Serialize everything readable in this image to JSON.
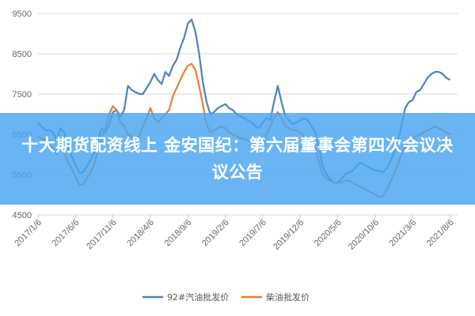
{
  "banner": {
    "title": "十大期货配资线上 金安国纪：第六届董事会第四次会议决议公告"
  },
  "chart_data": {
    "type": "line",
    "title": "",
    "xlabel": "",
    "ylabel": "",
    "ylim": [
      4500,
      9500
    ],
    "y_ticks": [
      "9500",
      "8500",
      "7500",
      "6500",
      "5500",
      "4500"
    ],
    "y_tick_values": [
      9500,
      8500,
      7500,
      6500,
      5500,
      4500
    ],
    "x_tick_labels": [
      "2017/1/6",
      "2017/6/6",
      "2017/11/6",
      "2018/4/6",
      "2018/9/6",
      "2019/2/6",
      "2019/7/6",
      "2019/12/6",
      "2020/5/6",
      "2020/10/6",
      "2021/3/6",
      "2021/8/6"
    ],
    "x_tick_index": [
      0,
      5,
      10,
      15,
      20,
      25,
      30,
      35,
      40,
      45,
      50,
      55
    ],
    "x_index_range": [
      0,
      56
    ],
    "grid": "horizontal",
    "legend_position": "bottom",
    "series": [
      {
        "name": "92#汽油批发价",
        "color": "#4f81bd",
        "points": [
          [
            0,
            6800
          ],
          [
            0.5,
            6680
          ],
          [
            1,
            6600
          ],
          [
            1.5,
            6600
          ],
          [
            2,
            6550
          ],
          [
            2.5,
            6350
          ],
          [
            3,
            6650
          ],
          [
            3.5,
            6550
          ],
          [
            4,
            6200
          ],
          [
            4.5,
            5950
          ],
          [
            5,
            5750
          ],
          [
            5.5,
            5550
          ],
          [
            6,
            5550
          ],
          [
            6.5,
            5700
          ],
          [
            7,
            5850
          ],
          [
            7.5,
            6050
          ],
          [
            8,
            6350
          ],
          [
            8.5,
            6650
          ],
          [
            9,
            6550
          ],
          [
            9.5,
            6750
          ],
          [
            10,
            7050
          ],
          [
            10.5,
            7100
          ],
          [
            11,
            6950
          ],
          [
            11.5,
            7100
          ],
          [
            12,
            7700
          ],
          [
            12.5,
            7600
          ],
          [
            13,
            7550
          ],
          [
            13.5,
            7500
          ],
          [
            14,
            7500
          ],
          [
            14.5,
            7650
          ],
          [
            15,
            7800
          ],
          [
            15.5,
            8000
          ],
          [
            16,
            7850
          ],
          [
            16.5,
            7750
          ],
          [
            17,
            8050
          ],
          [
            17.5,
            7950
          ],
          [
            18,
            8200
          ],
          [
            18.5,
            8350
          ],
          [
            19,
            8650
          ],
          [
            19.5,
            8900
          ],
          [
            20,
            9250
          ],
          [
            20.5,
            9350
          ],
          [
            21,
            9050
          ],
          [
            21.5,
            8500
          ],
          [
            22,
            7800
          ],
          [
            22.5,
            7300
          ],
          [
            23,
            7000
          ],
          [
            23.5,
            7050
          ],
          [
            24,
            7150
          ],
          [
            24.5,
            7200
          ],
          [
            25,
            7250
          ],
          [
            25.5,
            7150
          ],
          [
            26,
            7100
          ],
          [
            26.5,
            7000
          ],
          [
            27,
            6950
          ],
          [
            27.5,
            6900
          ],
          [
            28,
            6850
          ],
          [
            28.5,
            6800
          ],
          [
            29,
            6700
          ],
          [
            29.5,
            6650
          ],
          [
            30,
            6800
          ],
          [
            30.5,
            6900
          ],
          [
            31,
            6850
          ],
          [
            31.5,
            7300
          ],
          [
            32,
            7700
          ],
          [
            32.5,
            7300
          ],
          [
            33,
            6950
          ],
          [
            33.5,
            6850
          ],
          [
            34,
            6750
          ],
          [
            34.5,
            6800
          ],
          [
            35,
            6850
          ],
          [
            35.5,
            6900
          ],
          [
            36,
            6850
          ],
          [
            36.5,
            6700
          ],
          [
            37,
            6550
          ],
          [
            37.5,
            6150
          ],
          [
            38,
            5700
          ],
          [
            38.5,
            5500
          ],
          [
            39,
            5400
          ],
          [
            39.5,
            5300
          ],
          [
            40,
            5300
          ],
          [
            40.5,
            5400
          ],
          [
            41,
            5500
          ],
          [
            41.5,
            5550
          ],
          [
            42,
            5600
          ],
          [
            42.5,
            5700
          ],
          [
            43,
            5800
          ],
          [
            43.5,
            5750
          ],
          [
            44,
            5700
          ],
          [
            44.5,
            5650
          ],
          [
            45,
            5600
          ],
          [
            45.5,
            5600
          ],
          [
            46,
            5550
          ],
          [
            46.5,
            5650
          ],
          [
            47,
            5800
          ],
          [
            47.5,
            6050
          ],
          [
            48,
            6300
          ],
          [
            48.5,
            6700
          ],
          [
            49,
            7150
          ],
          [
            49.5,
            7300
          ],
          [
            50,
            7350
          ],
          [
            50.5,
            7550
          ],
          [
            51,
            7600
          ],
          [
            51.5,
            7750
          ],
          [
            52,
            7900
          ],
          [
            52.5,
            8000
          ],
          [
            53,
            8050
          ],
          [
            53.5,
            8050
          ],
          [
            54,
            8000
          ],
          [
            54.5,
            7900
          ],
          [
            55,
            7850
          ]
        ]
      },
      {
        "name": "柴油批发价",
        "color": "#ed7d31",
        "points": [
          [
            0,
            6450
          ],
          [
            0.5,
            6400
          ],
          [
            1,
            6350
          ],
          [
            1.5,
            6250
          ],
          [
            2,
            6150
          ],
          [
            2.5,
            6000
          ],
          [
            3,
            6200
          ],
          [
            3.5,
            6050
          ],
          [
            4,
            5800
          ],
          [
            4.5,
            5650
          ],
          [
            5,
            5450
          ],
          [
            5.5,
            5250
          ],
          [
            6,
            5250
          ],
          [
            6.5,
            5400
          ],
          [
            7,
            5550
          ],
          [
            7.5,
            5750
          ],
          [
            8,
            6100
          ],
          [
            8.5,
            6400
          ],
          [
            9,
            6650
          ],
          [
            9.5,
            7000
          ],
          [
            10,
            7200
          ],
          [
            10.5,
            7100
          ],
          [
            11,
            6800
          ],
          [
            11.5,
            6700
          ],
          [
            12,
            6500
          ],
          [
            12.5,
            6450
          ],
          [
            13,
            6400
          ],
          [
            13.5,
            6450
          ],
          [
            14,
            6700
          ],
          [
            14.5,
            6900
          ],
          [
            15,
            7150
          ],
          [
            15.5,
            6900
          ],
          [
            16,
            6800
          ],
          [
            16.5,
            6900
          ],
          [
            17,
            7000
          ],
          [
            17.5,
            7100
          ],
          [
            18,
            7450
          ],
          [
            18.5,
            7650
          ],
          [
            19,
            7850
          ],
          [
            19.5,
            8050
          ],
          [
            20,
            8200
          ],
          [
            20.5,
            8250
          ],
          [
            21,
            8100
          ],
          [
            21.5,
            7700
          ],
          [
            22,
            7250
          ],
          [
            22.5,
            6750
          ],
          [
            23,
            6550
          ],
          [
            23.5,
            6600
          ],
          [
            24,
            6650
          ],
          [
            24.5,
            6700
          ],
          [
            25,
            6650
          ],
          [
            25.5,
            6550
          ],
          [
            26,
            6500
          ],
          [
            26.5,
            6450
          ],
          [
            27,
            6400
          ],
          [
            27.5,
            6400
          ],
          [
            28,
            6350
          ],
          [
            28.5,
            6300
          ],
          [
            29,
            6250
          ],
          [
            29.5,
            6200
          ],
          [
            30,
            6300
          ],
          [
            30.5,
            6500
          ],
          [
            31,
            6700
          ],
          [
            31.5,
            6900
          ],
          [
            32,
            7050
          ],
          [
            32.5,
            6900
          ],
          [
            33,
            6700
          ],
          [
            33.5,
            6650
          ],
          [
            34,
            6600
          ],
          [
            34.5,
            6600
          ],
          [
            35,
            6550
          ],
          [
            35.5,
            6450
          ],
          [
            36,
            6400
          ],
          [
            36.5,
            6300
          ],
          [
            37,
            6150
          ],
          [
            37.5,
            5800
          ],
          [
            38,
            5500
          ],
          [
            38.5,
            5400
          ],
          [
            39,
            5350
          ],
          [
            39.5,
            5300
          ],
          [
            40,
            5300
          ],
          [
            40.5,
            5300
          ],
          [
            41,
            5350
          ],
          [
            41.5,
            5350
          ],
          [
            42,
            5300
          ],
          [
            42.5,
            5250
          ],
          [
            43,
            5200
          ],
          [
            43.5,
            5150
          ],
          [
            44,
            5100
          ],
          [
            44.5,
            5050
          ],
          [
            45,
            5000
          ],
          [
            45.5,
            4950
          ],
          [
            46,
            4950
          ],
          [
            46.5,
            5100
          ],
          [
            47,
            5300
          ],
          [
            47.5,
            5500
          ],
          [
            48,
            5750
          ],
          [
            48.5,
            6000
          ],
          [
            49,
            6200
          ],
          [
            49.5,
            6300
          ],
          [
            50,
            6400
          ],
          [
            50.5,
            6450
          ],
          [
            51,
            6500
          ],
          [
            51.5,
            6550
          ],
          [
            52,
            6600
          ],
          [
            52.5,
            6650
          ],
          [
            53,
            6700
          ],
          [
            53.5,
            6650
          ],
          [
            54,
            6600
          ],
          [
            54.5,
            6550
          ],
          [
            55,
            6500
          ]
        ]
      }
    ]
  }
}
